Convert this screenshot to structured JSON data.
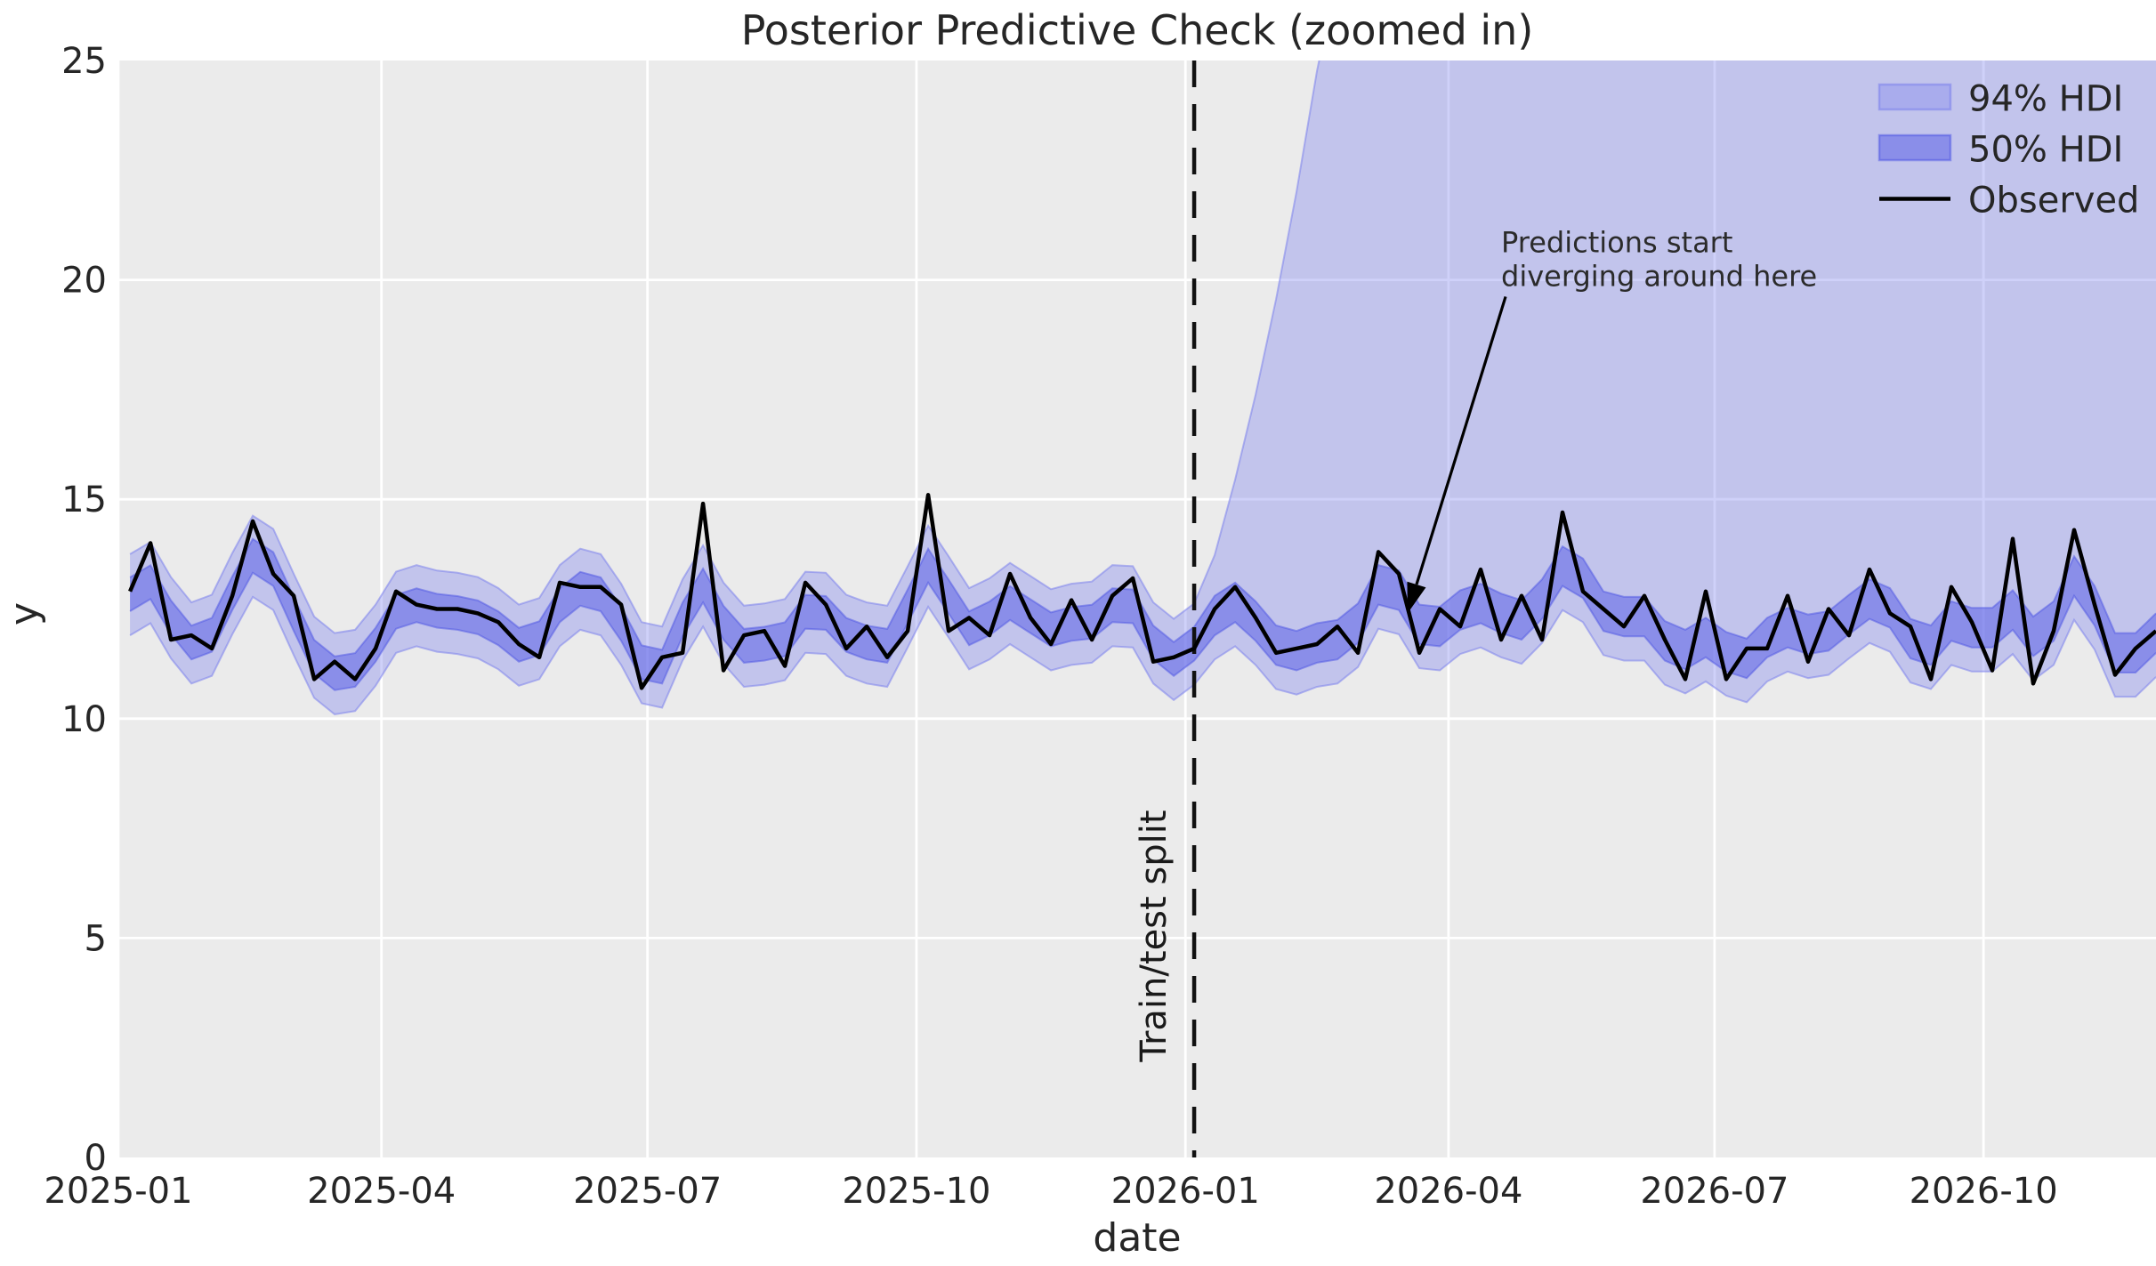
{
  "chart_data": {
    "type": "line",
    "title": "Posterior Predictive Check (zoomed in)",
    "xlabel": "date",
    "ylabel": "y",
    "ylim": [
      0,
      25
    ],
    "yticks": [
      0,
      5,
      10,
      15,
      20,
      25
    ],
    "x_axis_start": "2025-01-01",
    "xticks": [
      {
        "label": "2025-01",
        "date": "2025-01-01"
      },
      {
        "label": "2025-04",
        "date": "2025-04-01"
      },
      {
        "label": "2025-07",
        "date": "2025-07-01"
      },
      {
        "label": "2025-10",
        "date": "2025-10-01"
      },
      {
        "label": "2026-01",
        "date": "2026-01-01"
      },
      {
        "label": "2026-04",
        "date": "2026-04-01"
      },
      {
        "label": "2026-07",
        "date": "2026-07-01"
      },
      {
        "label": "2026-10",
        "date": "2026-10-01"
      }
    ],
    "grid": true,
    "legend_position": "upper right",
    "legend": [
      "94% HDI",
      "50% HDI",
      "Observed"
    ],
    "series": {
      "observed": {
        "name": "Observed",
        "start_date": "2025-01-05",
        "freq_days": 7,
        "values": [
          12.9,
          14.0,
          11.8,
          11.9,
          11.6,
          12.8,
          14.5,
          13.3,
          12.8,
          10.9,
          11.3,
          10.9,
          11.6,
          12.9,
          12.6,
          12.5,
          12.5,
          12.4,
          12.2,
          11.7,
          11.4,
          13.1,
          13.0,
          13.0,
          12.6,
          10.7,
          11.4,
          11.5,
          14.9,
          11.1,
          11.9,
          12.0,
          11.2,
          13.1,
          12.6,
          11.6,
          12.1,
          11.4,
          12.0,
          15.1,
          12.0,
          12.3,
          11.9,
          13.3,
          12.3,
          11.7,
          12.7,
          11.8,
          12.8,
          13.2,
          11.3,
          11.4,
          11.6,
          12.5,
          13.0,
          12.3,
          11.5,
          11.6,
          11.7,
          12.1,
          11.5,
          13.8,
          13.3,
          11.5,
          12.5,
          12.1,
          13.4,
          11.8,
          12.8,
          11.8,
          14.7,
          12.9,
          12.5,
          12.1,
          12.8,
          11.8,
          10.9,
          12.9,
          10.9,
          11.6,
          11.6,
          12.8,
          11.3,
          12.5,
          11.9,
          13.4,
          12.4,
          12.1,
          10.9,
          13.0,
          12.2,
          11.1,
          14.1,
          10.8,
          12.0,
          14.3,
          12.6,
          11.0,
          11.6,
          12.0
        ]
      }
    },
    "hdi": {
      "hdi94": {
        "label": "94% HDI",
        "train_above": 0.85,
        "train_below": 1.0,
        "test_above": 0.85,
        "test_below": 1.05,
        "divergence_start": 12.2,
        "divergence_rate": 0.118,
        "divergence_cap": 27
      },
      "hdi50": {
        "label": "50% HDI",
        "train_above": 0.32,
        "train_below": 0.45,
        "test_above": 0.4,
        "test_below": 0.5
      }
    },
    "split": {
      "label": "Train/test split",
      "date": "2026-01-04",
      "index": 52
    },
    "annotation": {
      "line1": "Predictions start",
      "line2": "diverging around here",
      "text_date": "2026-04-19",
      "text_y": 21.2,
      "arrow_tip_date": "2026-03-18",
      "arrow_tip_y": 12.4
    },
    "colors": {
      "plot_background": "#ebebeb",
      "gridline": "#ffffff",
      "observed": "#000000",
      "hdi94_fill": "rgba(128,134,238,0.38)",
      "hdi94_edge": "rgba(124,130,236,0.55)",
      "hdi50_fill": "rgba(92,99,232,0.55)",
      "hdi50_edge": "rgba(78,85,228,0.50)",
      "split_line": "#111111",
      "text": "#262626"
    }
  }
}
